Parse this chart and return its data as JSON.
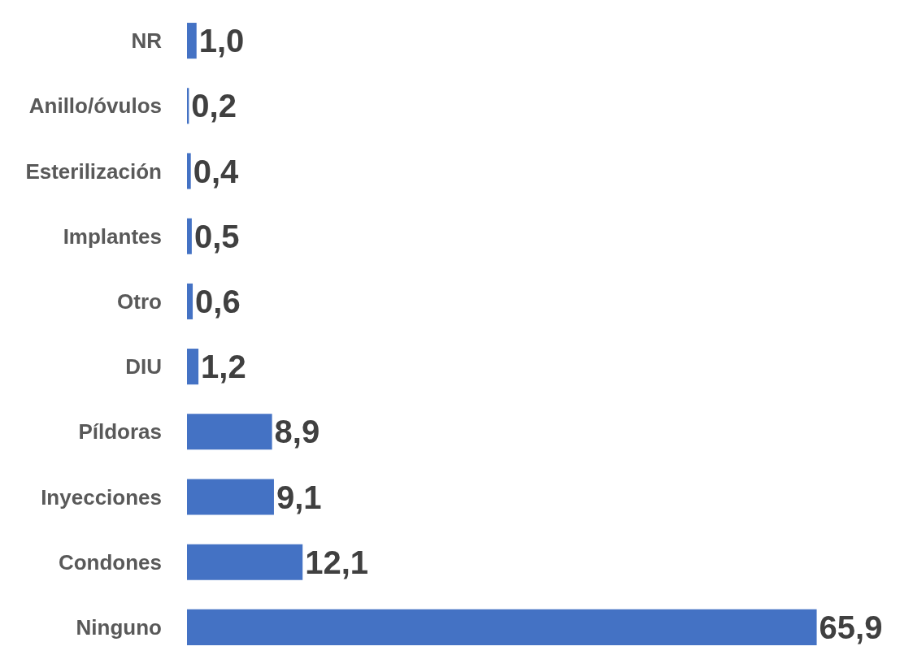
{
  "chart_data": {
    "type": "bar",
    "orientation": "horizontal",
    "categories": [
      "NR",
      "Anillo/óvulos",
      "Esterilización",
      "Implantes",
      "Otro",
      "DIU",
      "Píldoras",
      "Inyecciones",
      "Condones",
      "Ninguno"
    ],
    "values": [
      1.0,
      0.2,
      0.4,
      0.5,
      0.6,
      1.2,
      8.9,
      9.1,
      12.1,
      65.9
    ],
    "value_labels": [
      "1,0",
      "0,2",
      "0,4",
      "0,5",
      "0,6",
      "1,2",
      "8,9",
      "9,1",
      "12,1",
      "65,9"
    ],
    "color": "#4472c4"
  }
}
